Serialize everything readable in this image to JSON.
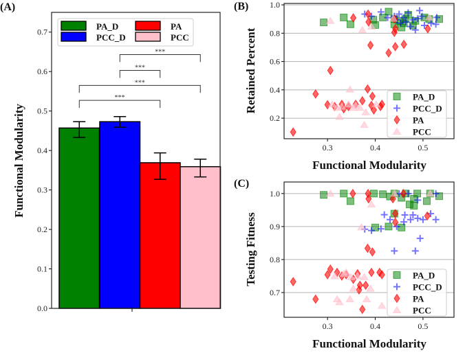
{
  "chart_data": [
    {
      "panel_label": "(A)",
      "type": "bar",
      "xlabel": "",
      "ylabel": "Functional Modularity",
      "ylim": [
        0,
        0.75
      ],
      "yticks": [
        "0.0",
        "0.1",
        "0.2",
        "0.3",
        "0.4",
        "0.5",
        "0.6",
        "0.7"
      ],
      "grid": false,
      "legend_placement": "top",
      "series": [
        {
          "name": "PA_D",
          "value": 0.457,
          "err_low": 0.433,
          "err_high": 0.473,
          "color": "#008000"
        },
        {
          "name": "PCC_D",
          "value": 0.473,
          "err_low": 0.459,
          "err_high": 0.486,
          "color": "#0000ff"
        },
        {
          "name": "PA",
          "value": 0.369,
          "err_low": 0.327,
          "err_high": 0.394,
          "color": "#ff0000"
        },
        {
          "name": "PCC",
          "value": 0.359,
          "err_low": 0.333,
          "err_high": 0.378,
          "color": "#ffc0cb"
        }
      ],
      "significance": [
        {
          "from": "PCC_D",
          "to": "PCC",
          "label": "***"
        },
        {
          "from": "PCC_D",
          "to": "PA",
          "label": "***"
        },
        {
          "from": "PA_D",
          "to": "PCC",
          "label": "***"
        },
        {
          "from": "PA_D",
          "to": "PA",
          "label": "***"
        }
      ]
    },
    {
      "panel_label": "(B)",
      "type": "scatter",
      "xlabel": "Functional Modularity",
      "ylabel": "Retained Percent",
      "xlim": [
        0.209,
        0.565
      ],
      "ylim": [
        0.055,
        1.01
      ],
      "xticks": [
        "0.3",
        "0.4",
        "0.5"
      ],
      "yticks": [
        "0.2",
        "0.4",
        "0.6",
        "0.8",
        "1.0"
      ],
      "grid": "horizontal",
      "legend_placement": "lower right",
      "series": [
        {
          "name": "PA_D",
          "marker": "square",
          "color": "#008000",
          "points": [
            [
              0.292,
              0.876
            ],
            [
              0.334,
              0.911
            ],
            [
              0.348,
              0.863
            ],
            [
              0.4,
              0.858
            ],
            [
              0.396,
              0.895
            ],
            [
              0.428,
              0.952
            ],
            [
              0.416,
              0.911
            ],
            [
              0.44,
              0.9
            ],
            [
              0.455,
              0.84
            ],
            [
              0.46,
              0.87
            ],
            [
              0.469,
              0.93
            ],
            [
              0.484,
              0.887
            ],
            [
              0.503,
              0.911
            ],
            [
              0.513,
              0.9
            ],
            [
              0.534,
              0.9
            ],
            [
              0.45,
              0.885
            ],
            [
              0.479,
              0.855
            ],
            [
              0.44,
              0.863
            ],
            [
              0.463,
              0.9
            ]
          ]
        },
        {
          "name": "PCC_D",
          "marker": "plus",
          "color": "#0000ff",
          "points": [
            [
              0.378,
              0.935
            ],
            [
              0.392,
              0.92
            ],
            [
              0.412,
              0.95
            ],
            [
              0.426,
              0.91
            ],
            [
              0.44,
              0.92
            ],
            [
              0.45,
              0.935
            ],
            [
              0.46,
              0.91
            ],
            [
              0.469,
              0.944
            ],
            [
              0.479,
              0.895
            ],
            [
              0.484,
              0.823
            ],
            [
              0.493,
              0.96
            ],
            [
              0.498,
              0.92
            ],
            [
              0.503,
              0.855
            ],
            [
              0.517,
              0.87
            ],
            [
              0.527,
              0.863
            ],
            [
              0.529,
              0.911
            ],
            [
              0.474,
              0.847
            ],
            [
              0.464,
              0.879
            ],
            [
              0.489,
              0.903
            ],
            [
              0.453,
              0.871
            ],
            [
              0.445,
              0.895
            ]
          ]
        },
        {
          "name": "PA",
          "marker": "diamond",
          "color": "#ff0000",
          "points": [
            [
              0.228,
              0.102
            ],
            [
              0.275,
              0.371
            ],
            [
              0.306,
              0.537
            ],
            [
              0.3,
              0.295
            ],
            [
              0.354,
              0.908
            ],
            [
              0.385,
              0.935
            ],
            [
              0.386,
              0.879
            ],
            [
              0.39,
              0.715
            ],
            [
              0.384,
              0.406
            ],
            [
              0.394,
              0.355
            ],
            [
              0.428,
              0.661
            ],
            [
              0.442,
              0.705
            ],
            [
              0.46,
              0.721
            ],
            [
              0.44,
              0.806
            ],
            [
              0.442,
              0.831
            ],
            [
              0.51,
              0.831
            ],
            [
              0.44,
              0.9
            ],
            [
              0.315,
              0.282
            ],
            [
              0.33,
              0.298
            ],
            [
              0.344,
              0.282
            ],
            [
              0.359,
              0.298
            ],
            [
              0.373,
              0.323
            ],
            [
              0.392,
              0.29
            ],
            [
              0.397,
              0.258
            ],
            [
              0.411,
              0.282
            ],
            [
              0.414,
              0.298
            ],
            [
              0.334,
              0.266
            ]
          ]
        },
        {
          "name": "PCC",
          "marker": "triangle",
          "color": "#ffc0cb",
          "points": [
            [
              0.306,
              0.887
            ],
            [
              0.347,
              0.403
            ],
            [
              0.325,
              0.21
            ],
            [
              0.377,
              0.153
            ],
            [
              0.373,
              0.823
            ],
            [
              0.392,
              0.847
            ],
            [
              0.433,
              0.258
            ],
            [
              0.438,
              0.903
            ],
            [
              0.513,
              0.911
            ],
            [
              0.31,
              0.298
            ],
            [
              0.33,
              0.282
            ],
            [
              0.344,
              0.298
            ],
            [
              0.359,
              0.29
            ],
            [
              0.368,
              0.274
            ],
            [
              0.38,
              0.242
            ],
            [
              0.402,
              0.298
            ],
            [
              0.32,
              0.274
            ],
            [
              0.354,
              0.274
            ]
          ]
        }
      ]
    },
    {
      "panel_label": "(C)",
      "type": "scatter",
      "xlabel": "Functional Modularity",
      "ylabel": "Testing Fitness",
      "xlim": [
        0.209,
        0.565
      ],
      "ylim": [
        0.625,
        1.035
      ],
      "xticks": [
        "0.3",
        "0.4",
        "0.5"
      ],
      "yticks": [
        "0.7",
        "0.8",
        "0.9",
        "1.0"
      ],
      "grid": "horizontal",
      "legend_placement": "lower right",
      "series": [
        {
          "name": "PA_D",
          "marker": "square",
          "color": "#008000",
          "points": [
            [
              0.292,
              0.996
            ],
            [
              0.334,
              1.0
            ],
            [
              0.348,
              0.977
            ],
            [
              0.397,
              1.0
            ],
            [
              0.4,
              0.897
            ],
            [
              0.428,
              0.9
            ],
            [
              0.44,
              0.939
            ],
            [
              0.455,
              0.897
            ],
            [
              0.455,
              0.987
            ],
            [
              0.472,
              0.967
            ],
            [
              0.481,
              0.963
            ],
            [
              0.481,
              0.984
            ],
            [
              0.508,
              0.977
            ],
            [
              0.534,
              0.992
            ],
            [
              0.416,
              0.998
            ],
            [
              0.44,
              1.0
            ],
            [
              0.464,
              1.0
            ],
            [
              0.488,
              1.0
            ],
            [
              0.515,
              1.0
            ],
            [
              0.431,
              0.991
            ]
          ]
        },
        {
          "name": "PCC_D",
          "marker": "plus",
          "color": "#0000ff",
          "points": [
            [
              0.378,
              0.892
            ],
            [
              0.392,
              0.888
            ],
            [
              0.412,
              0.893
            ],
            [
              0.419,
              0.936
            ],
            [
              0.431,
              0.921
            ],
            [
              0.44,
              0.826
            ],
            [
              0.445,
              0.9
            ],
            [
              0.462,
              0.935
            ],
            [
              0.46,
              0.914
            ],
            [
              0.474,
              0.921
            ],
            [
              0.479,
              0.935
            ],
            [
              0.484,
              0.826
            ],
            [
              0.489,
              0.925
            ],
            [
              0.494,
              0.864
            ],
            [
              0.5,
              0.921
            ],
            [
              0.516,
              0.939
            ],
            [
              0.527,
              0.921
            ],
            [
              0.527,
              1.0
            ],
            [
              0.489,
              0.98
            ],
            [
              0.469,
              1.0
            ],
            [
              0.45,
              1.0
            ]
          ]
        },
        {
          "name": "PA",
          "marker": "diamond",
          "color": "#ff0000",
          "points": [
            [
              0.228,
              0.733
            ],
            [
              0.275,
              0.68
            ],
            [
              0.306,
              0.771
            ],
            [
              0.3,
              0.754
            ],
            [
              0.353,
              1.0
            ],
            [
              0.385,
              1.0
            ],
            [
              0.386,
              0.984
            ],
            [
              0.384,
              0.834
            ],
            [
              0.394,
              0.823
            ],
            [
              0.373,
              0.649
            ],
            [
              0.366,
              0.708
            ],
            [
              0.368,
              0.722
            ],
            [
              0.38,
              0.722
            ],
            [
              0.437,
              0.984
            ],
            [
              0.442,
              0.939
            ],
            [
              0.442,
              0.913
            ],
            [
              0.459,
              1.0
            ],
            [
              0.509,
              0.932
            ],
            [
              0.32,
              0.761
            ],
            [
              0.339,
              0.754
            ],
            [
              0.354,
              0.74
            ],
            [
              0.363,
              0.757
            ],
            [
              0.392,
              0.761
            ],
            [
              0.409,
              0.761
            ],
            [
              0.414,
              0.754
            ],
            [
              0.33,
              0.75
            ]
          ]
        },
        {
          "name": "PCC",
          "marker": "triangle",
          "color": "#ffc0cb",
          "points": [
            [
              0.306,
              1.0
            ],
            [
              0.371,
              0.898
            ],
            [
              0.392,
              0.967
            ],
            [
              0.32,
              0.68
            ],
            [
              0.325,
              0.671
            ],
            [
              0.347,
              0.68
            ],
            [
              0.382,
              0.68
            ],
            [
              0.414,
              0.66
            ],
            [
              0.435,
              0.754
            ],
            [
              0.44,
              1.0
            ],
            [
              0.515,
              1.0
            ],
            [
              0.354,
              0.712
            ],
            [
              0.39,
              0.712
            ],
            [
              0.315,
              0.75
            ],
            [
              0.334,
              0.757
            ],
            [
              0.349,
              0.747
            ],
            [
              0.363,
              0.75
            ],
            [
              0.377,
              0.747
            ],
            [
              0.339,
              0.761
            ]
          ]
        }
      ]
    }
  ]
}
